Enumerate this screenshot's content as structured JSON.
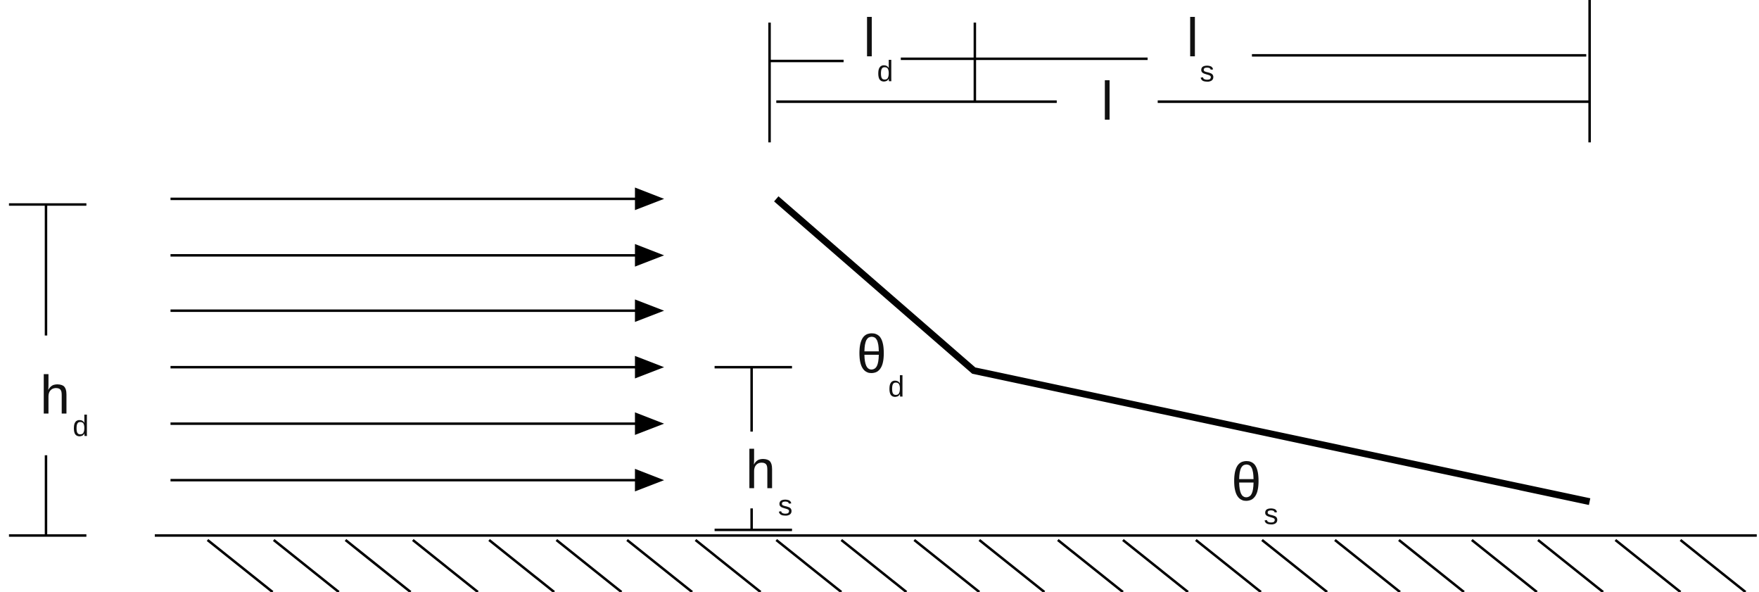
{
  "labels": {
    "ld": {
      "main": "l",
      "sub": "d"
    },
    "ls": {
      "main": "l",
      "sub": "s"
    },
    "l": {
      "main": "l"
    },
    "hd": {
      "main": "h",
      "sub": "d"
    },
    "hs": {
      "main": "h",
      "sub": "s"
    },
    "theta_d": {
      "main": "θ",
      "sub": "d"
    },
    "theta_s": {
      "main": "θ",
      "sub": "s"
    }
  }
}
